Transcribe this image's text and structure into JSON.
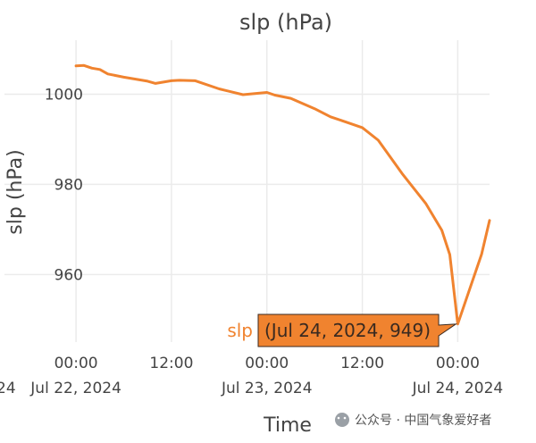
{
  "chart_data": {
    "type": "line",
    "title": "slp (hPa)",
    "xlabel": "Time",
    "ylabel": "slp (hPa)",
    "series": [
      {
        "name": "slp",
        "color": "#f0832f",
        "x": [
          "2024-07-22T00:00",
          "2024-07-22T01:00",
          "2024-07-22T02:00",
          "2024-07-22T03:00",
          "2024-07-22T04:00",
          "2024-07-22T06:00",
          "2024-07-22T09:00",
          "2024-07-22T10:00",
          "2024-07-22T12:00",
          "2024-07-22T13:00",
          "2024-07-22T15:00",
          "2024-07-22T18:00",
          "2024-07-22T21:00",
          "2024-07-23T00:00",
          "2024-07-23T01:00",
          "2024-07-23T03:00",
          "2024-07-23T06:00",
          "2024-07-23T08:00",
          "2024-07-23T10:00",
          "2024-07-23T12:00",
          "2024-07-23T14:00",
          "2024-07-23T17:00",
          "2024-07-23T20:00",
          "2024-07-23T22:00",
          "2024-07-23T23:00",
          "2024-07-24T00:00",
          "2024-07-24T03:00",
          "2024-07-24T04:00"
        ],
        "y": [
          1006.3,
          1006.4,
          1005.8,
          1005.5,
          1004.5,
          1003.8,
          1002.9,
          1002.4,
          1003.0,
          1003.1,
          1003.0,
          1001.2,
          999.9,
          1000.4,
          999.8,
          999.1,
          996.8,
          995.0,
          993.8,
          992.6,
          989.8,
          982.4,
          975.7,
          969.8,
          964.4,
          949.0,
          964.5,
          972.0
        ]
      }
    ],
    "xticks": [
      {
        "value": "2024-07-22T00:00",
        "line1": "00:00",
        "line2": "Jul 22, 2024"
      },
      {
        "value": "2024-07-22T12:00",
        "line1": "12:00",
        "line2": ""
      },
      {
        "value": "2024-07-23T00:00",
        "line1": "00:00",
        "line2": "Jul 23, 2024"
      },
      {
        "value": "2024-07-23T12:00",
        "line1": "12:00",
        "line2": ""
      },
      {
        "value": "2024-07-24T00:00",
        "line1": "00:00",
        "line2": "Jul 24, 2024"
      }
    ],
    "xlim": [
      "2024-07-21T15:00",
      "2024-07-24T04:00"
    ],
    "yticks": [
      960,
      980,
      1000
    ],
    "ylim": [
      945,
      1012
    ],
    "grid": true,
    "hover": {
      "series": "slp",
      "text": "(Jul 24, 2024, 949)",
      "x": "2024-07-24T00:00",
      "y": 949
    },
    "clipped_left_tick": "24"
  },
  "watermark": "公众号 · 中国气象爱好者"
}
